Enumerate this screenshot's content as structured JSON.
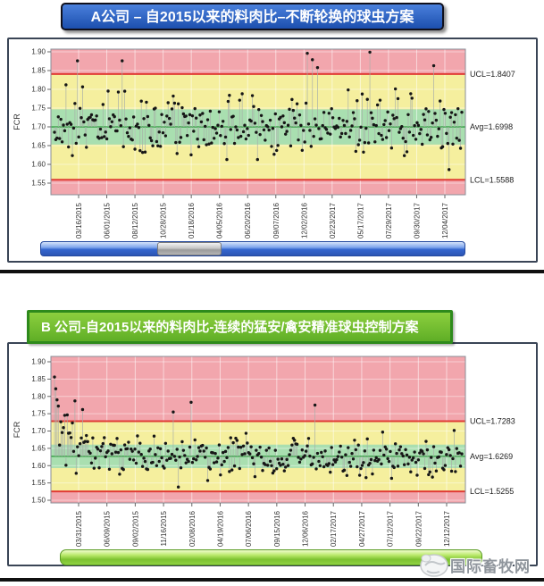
{
  "watermark": {
    "text": "国际畜牧网"
  },
  "chart_data": [
    {
      "type": "scatter",
      "subtype": "spc-individuals-control-chart",
      "title": "A公司 – 自2015以来的料肉比–不断轮换的球虫方案",
      "xlabel": "",
      "ylabel": "FCR",
      "yticks": [
        "1.90",
        "1.85",
        "1.80",
        "1.75",
        "1.70",
        "1.65",
        "1.60",
        "1.55"
      ],
      "ylim": [
        1.52,
        1.91
      ],
      "grid": true,
      "ucl": 1.8407,
      "avg": 1.6998,
      "lcl": 1.5588,
      "sigma": 0.047,
      "ucl_label": "UCL=1.8407",
      "avg_label": "Avg=1.6998",
      "lcl_label": "LCL=1.5588",
      "x_dates": [
        "03/16/2015",
        "06/01/2015",
        "08/12/2015",
        "10/28/2015",
        "01/18/2016",
        "04/05/2016",
        "06/20/2016",
        "09/07/2016",
        "12/02/2016",
        "02/23/2017",
        "05/17/2017",
        "07/29/2017",
        "09/30/2017",
        "12/04/2017"
      ],
      "n_points": 320,
      "noise_sigma": 0.042,
      "clamp": [
        1.586,
        1.812
      ],
      "seed": 20150316,
      "trend": 0,
      "transient": null,
      "first_values": [],
      "outliers": [
        {
          "f": 0.055,
          "v": 1.876
        },
        {
          "f": 0.165,
          "v": 1.876
        },
        {
          "f": 0.62,
          "v": 1.896
        },
        {
          "f": 0.632,
          "v": 1.879
        },
        {
          "f": 0.645,
          "v": 1.858
        },
        {
          "f": 0.775,
          "v": 1.899
        },
        {
          "f": 0.93,
          "v": 1.863
        }
      ],
      "colors": {
        "band_outer": "#F2A6AD",
        "band_middle": "#F5EF9E",
        "band_inner": "#A9DFB0",
        "limit_line": "#E03B35",
        "avg_line": "#2E9E3E",
        "point": "#161616",
        "stem": "#A8AFA9",
        "title_bg": "#2F63C6",
        "scrollbar": "#3566CF",
        "scrollbar_thumb": "#B5B5B5"
      }
    },
    {
      "type": "scatter",
      "subtype": "spc-individuals-control-chart",
      "title": "B 公司-自2015以来的料肉比-连续的猛安/禽安精准球虫控制方案",
      "xlabel": "",
      "ylabel": "FCR",
      "yticks": [
        "1.90",
        "1.85",
        "1.80",
        "1.75",
        "1.70",
        "1.65",
        "1.60",
        "1.55",
        "1.50"
      ],
      "ylim": [
        1.485,
        1.915
      ],
      "grid": true,
      "ucl": 1.7283,
      "avg": 1.6269,
      "lcl": 1.5255,
      "sigma": 0.0338,
      "ucl_label": "UCL=1.7283",
      "avg_label": "Avg=1.6269",
      "lcl_label": "LCL=1.5255",
      "x_dates": [
        "03/31/2015",
        "06/09/2015",
        "09/02/2015",
        "11/16/2015",
        "02/08/2016",
        "04/19/2016",
        "07/06/2016",
        "09/15/2016",
        "12/06/2016",
        "02/17/2017",
        "04/27/2017",
        "07/12/2017",
        "09/22/2017",
        "12/12/2017"
      ],
      "n_points": 320,
      "noise_sigma": 0.03,
      "clamp": [
        1.538,
        1.722
      ],
      "seed": 20150331,
      "trend": -0.018,
      "transient": {
        "amp": 0.095,
        "tau": 16
      },
      "first_values": [
        1.856,
        1.822,
        1.79,
        1.772
      ],
      "outliers": [
        {
          "f": 0.05,
          "v": 1.787
        },
        {
          "f": 0.07,
          "v": 1.762
        },
        {
          "f": 0.29,
          "v": 1.755
        },
        {
          "f": 0.335,
          "v": 1.783
        },
        {
          "f": 0.64,
          "v": 1.775
        }
      ],
      "colors": {
        "band_outer": "#F2A6AD",
        "band_middle": "#F5EF9E",
        "band_inner": "#A9DFB0",
        "limit_line": "#E03B35",
        "avg_line": "#2E9E3E",
        "point": "#161616",
        "stem": "#A8AFA9",
        "title_bg": "#6FBE2F",
        "scrollbar": "#7CC230"
      }
    }
  ]
}
